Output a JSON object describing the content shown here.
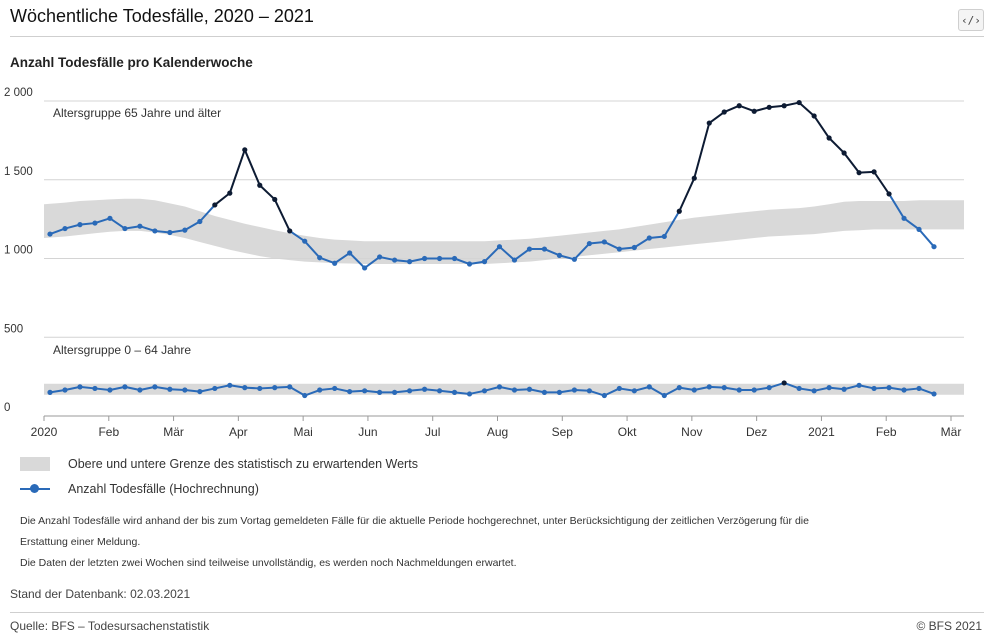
{
  "header": {
    "title": "Wöchentliche Todesfälle, 2020 – 2021",
    "embed_icon": "code-icon",
    "embed_label": "‹/›"
  },
  "chart_data": {
    "type": "line",
    "subtitle": "Anzahl Todesfälle pro Kalenderwoche",
    "ylim": [
      0,
      2000
    ],
    "y_ticks": [
      0,
      500,
      1000,
      1500,
      2000
    ],
    "y_tick_labels": [
      "0",
      "500",
      "1 000",
      "1 500",
      "2 000"
    ],
    "x_tick_labels": [
      "2020",
      "Feb",
      "Mär",
      "Apr",
      "Mai",
      "Jun",
      "Jul",
      "Aug",
      "Sep",
      "Okt",
      "Nov",
      "Dez",
      "2021",
      "Feb",
      "Mär"
    ],
    "grid": true,
    "colors": {
      "line": "#2a6ab8",
      "excess": "#0d1b33",
      "band": "#d9d9d9",
      "grid": "#d4d4d4"
    },
    "series": [
      {
        "name": "Altersgruppe 65 Jahre und älter",
        "values": [
          1155,
          1190,
          1215,
          1225,
          1255,
          1190,
          1205,
          1175,
          1165,
          1180,
          1235,
          1340,
          1415,
          1690,
          1465,
          1375,
          1175,
          1110,
          1005,
          970,
          1035,
          940,
          1010,
          990,
          980,
          1000,
          1000,
          1000,
          965,
          980,
          1075,
          990,
          1060,
          1060,
          1020,
          995,
          1095,
          1105,
          1060,
          1070,
          1130,
          1140,
          1300,
          1510,
          1860,
          1930,
          1970,
          1935,
          1960,
          1970,
          1990,
          1905,
          1765,
          1670,
          1545,
          1550,
          1410,
          1255,
          1185,
          1075
        ],
        "band_upper": [
          1345,
          1355,
          1365,
          1370,
          1375,
          1380,
          1380,
          1370,
          1350,
          1330,
          1300,
          1270,
          1245,
          1220,
          1200,
          1180,
          1160,
          1145,
          1130,
          1120,
          1115,
          1110,
          1110,
          1110,
          1110,
          1110,
          1110,
          1110,
          1110,
          1110,
          1115,
          1120,
          1125,
          1135,
          1145,
          1155,
          1165,
          1175,
          1185,
          1200,
          1215,
          1230,
          1245,
          1260,
          1270,
          1280,
          1290,
          1300,
          1310,
          1315,
          1320,
          1330,
          1345,
          1360,
          1365,
          1365,
          1365,
          1365,
          1370,
          1370
        ],
        "band_lower": [
          1130,
          1140,
          1150,
          1160,
          1170,
          1175,
          1175,
          1165,
          1150,
          1130,
          1105,
          1080,
          1055,
          1035,
          1015,
          1000,
          990,
          980,
          975,
          970,
          968,
          965,
          965,
          965,
          965,
          965,
          965,
          965,
          965,
          965,
          970,
          975,
          980,
          990,
          1000,
          1010,
          1020,
          1030,
          1040,
          1050,
          1060,
          1070,
          1080,
          1090,
          1100,
          1110,
          1120,
          1130,
          1140,
          1145,
          1150,
          1155,
          1165,
          1175,
          1180,
          1185,
          1185,
          1185,
          1185,
          1185
        ]
      },
      {
        "name": "Altersgruppe 0 – 64 Jahre",
        "values": [
          150,
          165,
          185,
          175,
          165,
          185,
          165,
          185,
          170,
          165,
          155,
          175,
          195,
          180,
          175,
          180,
          185,
          130,
          165,
          175,
          155,
          160,
          150,
          150,
          160,
          170,
          160,
          150,
          140,
          160,
          185,
          165,
          170,
          150,
          150,
          165,
          160,
          130,
          175,
          160,
          185,
          130,
          180,
          165,
          185,
          180,
          165,
          165,
          180,
          210,
          175,
          160,
          180,
          170,
          195,
          175,
          180,
          165,
          175,
          140
        ],
        "band_upper": [
          205,
          205,
          205,
          205,
          205,
          205,
          205,
          205,
          205,
          205,
          205,
          205,
          205,
          205,
          205,
          205,
          205,
          205,
          205,
          205,
          205,
          205,
          205,
          205,
          205,
          205,
          205,
          205,
          205,
          205,
          205,
          205,
          205,
          205,
          205,
          205,
          205,
          205,
          205,
          205,
          205,
          205,
          205,
          205,
          205,
          205,
          205,
          205,
          205,
          205,
          205,
          205,
          205,
          205,
          205,
          205,
          205,
          205,
          205,
          205
        ],
        "band_lower": [
          135,
          135,
          135,
          135,
          135,
          135,
          135,
          135,
          135,
          135,
          135,
          135,
          135,
          135,
          135,
          135,
          135,
          135,
          135,
          135,
          135,
          135,
          135,
          135,
          135,
          135,
          135,
          135,
          135,
          135,
          135,
          135,
          135,
          135,
          135,
          135,
          135,
          135,
          135,
          135,
          135,
          135,
          135,
          135,
          135,
          135,
          135,
          135,
          135,
          135,
          135,
          135,
          135,
          135,
          135,
          135,
          135,
          135,
          135,
          135
        ]
      }
    ]
  },
  "legend": {
    "band_label": "Obere und untere Grenze des statistisch zu erwartenden Werts",
    "line_label": "Anzahl Todesfälle (Hochrechnung)"
  },
  "notes": {
    "line1": "Die Anzahl Todesfälle wird anhand der bis zum Vortag gemeldeten Fälle für die aktuelle Periode hochgerechnet, unter Berücksichtigung der zeitlichen Verzögerung für die",
    "line2": "Erstattung einer Meldung.",
    "line3": "Die Daten der letzten zwei Wochen sind teilweise unvollständig, es werden noch Nachmeldungen erwartet."
  },
  "footer": {
    "stand": "Stand der Datenbank: 02.03.2021",
    "source": "Quelle: BFS – Todesursachenstatistik",
    "copyright": "© BFS 2021"
  }
}
